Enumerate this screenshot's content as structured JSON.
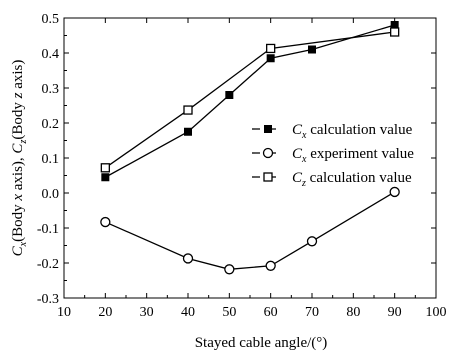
{
  "chart_data": {
    "type": "line",
    "xlabel": "Stayed cable angle/(°)",
    "ylabel": {
      "c1_sym": "C",
      "c1_sub": "x",
      "c1_text": "(Body ",
      "c1_axis": "x",
      "c1_axis_word": " axis), ",
      "c2_sym": "C",
      "c2_sub": "z",
      "c2_text": "(Body ",
      "c2_axis": "z",
      "c2_axis_word": " axis)"
    },
    "xlim": [
      10,
      100
    ],
    "ylim": [
      -0.3,
      0.5
    ],
    "xticks": [
      "10",
      "20",
      "30",
      "40",
      "50",
      "60",
      "70",
      "80",
      "90",
      "100"
    ],
    "yticks": [
      "-0.3",
      "-0.2",
      "-0.1",
      "0.0",
      "0.1",
      "0.2",
      "0.3",
      "0.4",
      "0.5"
    ],
    "legend_position": "right",
    "series": [
      {
        "legend_sym": "C",
        "legend_sub": "x",
        "legend_text": "calculation value",
        "marker": "filled-square",
        "x": [
          20,
          40,
          50,
          60,
          70,
          90
        ],
        "y": [
          0.045,
          0.175,
          0.28,
          0.385,
          0.41,
          0.48
        ]
      },
      {
        "legend_sym": "C",
        "legend_sub": "x",
        "legend_text": "experiment value",
        "marker": "open-circle",
        "x": [
          20,
          40,
          50,
          60,
          70,
          90
        ],
        "y": [
          -0.083,
          -0.187,
          -0.218,
          -0.208,
          -0.138,
          0.003
        ]
      },
      {
        "legend_sym": "C",
        "legend_sub": "z",
        "legend_text": "calculation value",
        "marker": "open-square",
        "x": [
          20,
          40,
          60,
          90
        ],
        "y": [
          0.072,
          0.237,
          0.413,
          0.46
        ]
      }
    ]
  }
}
